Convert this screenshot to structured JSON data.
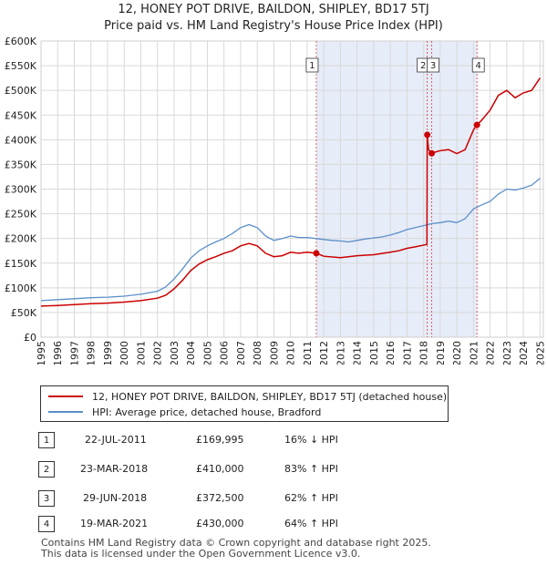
{
  "title_line1": "12, HONEY POT DRIVE, BAILDON, SHIPLEY, BD17 5TJ",
  "title_line2": "Price paid vs. HM Land Registry's House Price Index (HPI)",
  "colors": {
    "property": "#cc0000",
    "hpi": "#5b8fc9",
    "shade": "#e6ecf8",
    "grid": "#d9d9d9"
  },
  "legend": {
    "property_label": "12, HONEY POT DRIVE, BAILDON, SHIPLEY, BD17 5TJ (detached house)",
    "hpi_label": "HPI: Average price, detached house, Bradford"
  },
  "transactions": [
    {
      "num": "1",
      "date": "22-JUL-2011",
      "price": "£169,995",
      "hpi": "16% ↓ HPI"
    },
    {
      "num": "2",
      "date": "23-MAR-2018",
      "price": "£410,000",
      "hpi": "83% ↑ HPI"
    },
    {
      "num": "3",
      "date": "29-JUN-2018",
      "price": "£372,500",
      "hpi": "62% ↑ HPI"
    },
    {
      "num": "4",
      "date": "19-MAR-2021",
      "price": "£430,000",
      "hpi": "64% ↑ HPI"
    }
  ],
  "footer_line1": "Contains HM Land Registry data © Crown copyright and database right 2025.",
  "footer_line2": "This data is licensed under the Open Government Licence v3.0.",
  "chart_data": {
    "type": "line",
    "title": "12, HONEY POT DRIVE, BAILDON, SHIPLEY, BD17 5TJ — Price paid vs. HM Land Registry's House Price Index (HPI)",
    "xlabel": "",
    "ylabel": "",
    "xlim": [
      1995,
      2025.2
    ],
    "ylim": [
      0,
      600000
    ],
    "y_ticks": [
      0,
      50000,
      100000,
      150000,
      200000,
      250000,
      300000,
      350000,
      400000,
      450000,
      500000,
      550000,
      600000
    ],
    "y_tick_labels": [
      "£0",
      "£50K",
      "£100K",
      "£150K",
      "£200K",
      "£250K",
      "£300K",
      "£350K",
      "£400K",
      "£450K",
      "£500K",
      "£550K",
      "£600K"
    ],
    "x_ticks": [
      1995,
      1996,
      1997,
      1998,
      1999,
      2000,
      2001,
      2002,
      2003,
      2004,
      2005,
      2006,
      2007,
      2008,
      2009,
      2010,
      2011,
      2012,
      2013,
      2014,
      2015,
      2016,
      2017,
      2018,
      2019,
      2020,
      2021,
      2022,
      2023,
      2024,
      2025
    ],
    "grid": true,
    "shaded_range": [
      2011.55,
      2021.21
    ],
    "sales": [
      {
        "label": "1",
        "x": 2011.55,
        "y": 169995
      },
      {
        "label": "2",
        "x": 2018.22,
        "y": 410000
      },
      {
        "label": "3",
        "x": 2018.49,
        "y": 372500
      },
      {
        "label": "4",
        "x": 2021.21,
        "y": 430000
      }
    ],
    "series": [
      {
        "name": "12, HONEY POT DRIVE, BAILDON, SHIPLEY, BD17 5TJ (detached house)",
        "x": [
          1995,
          1996,
          1997,
          1998,
          1999,
          2000,
          2001,
          2002,
          2002.5,
          2003,
          2003.5,
          2004,
          2004.5,
          2005,
          2005.5,
          2006,
          2006.5,
          2007,
          2007.5,
          2008,
          2008.5,
          2009,
          2009.5,
          2010,
          2010.5,
          2011,
          2011.55,
          2012,
          2013,
          2014,
          2015,
          2016,
          2016.5,
          2017,
          2017.5,
          2018.2,
          2018.22,
          2018.3,
          2018.49,
          2018.7,
          2019,
          2019.5,
          2020,
          2020.5,
          2021,
          2021.21,
          2021.5,
          2022,
          2022.5,
          2023,
          2023.5,
          2024,
          2024.5,
          2025
        ],
        "y": [
          63000,
          64000,
          66000,
          68000,
          69000,
          71000,
          74000,
          79000,
          85000,
          98000,
          115000,
          135000,
          148000,
          157000,
          163000,
          170000,
          175000,
          185000,
          190000,
          185000,
          170000,
          163000,
          165000,
          172000,
          170000,
          172000,
          169995,
          164000,
          161000,
          165000,
          167000,
          172000,
          175000,
          180000,
          183000,
          188000,
          410000,
          380000,
          372500,
          375000,
          378000,
          380000,
          372000,
          380000,
          420000,
          430000,
          440000,
          460000,
          490000,
          500000,
          485000,
          495000,
          500000,
          525000
        ]
      },
      {
        "name": "HPI: Average price, detached house, Bradford",
        "x": [
          1995,
          1996,
          1997,
          1998,
          1999,
          2000,
          2001,
          2002,
          2002.5,
          2003,
          2003.5,
          2004,
          2004.5,
          2005,
          2005.5,
          2006,
          2006.5,
          2007,
          2007.5,
          2008,
          2008.5,
          2009,
          2009.5,
          2010,
          2010.5,
          2011,
          2011.5,
          2012,
          2012.5,
          2013,
          2013.5,
          2014,
          2014.5,
          2015,
          2015.5,
          2016,
          2016.5,
          2017,
          2017.5,
          2018,
          2018.5,
          2019,
          2019.5,
          2020,
          2020.5,
          2021,
          2021.5,
          2022,
          2022.5,
          2023,
          2023.5,
          2024,
          2024.5,
          2025
        ],
        "y": [
          74000,
          76000,
          78000,
          80000,
          81000,
          83000,
          87000,
          93000,
          102000,
          118000,
          138000,
          160000,
          175000,
          185000,
          193000,
          200000,
          210000,
          222000,
          228000,
          222000,
          205000,
          196000,
          200000,
          205000,
          202000,
          202000,
          200000,
          198000,
          196000,
          195000,
          193000,
          196000,
          199000,
          201000,
          203000,
          207000,
          212000,
          218000,
          222000,
          226000,
          230000,
          232000,
          235000,
          232000,
          240000,
          260000,
          268000,
          275000,
          290000,
          300000,
          298000,
          302000,
          308000,
          322000
        ]
      }
    ]
  }
}
